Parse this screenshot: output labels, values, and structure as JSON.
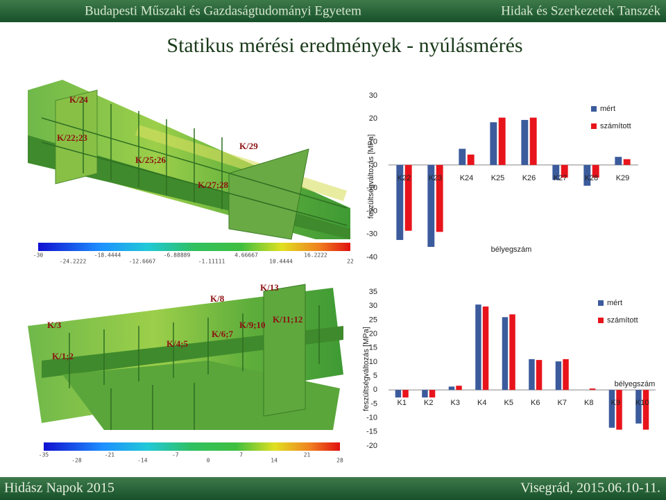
{
  "header": {
    "left": "Budapesti Műszaki és Gazdaságtudományi Egyetem",
    "right": "Hidak és Szerkezetek Tanszék"
  },
  "title": "Statikus mérési eredmények - nyúlásmérés",
  "footer": {
    "left": "Hidász Napok 2015",
    "right": "Visegrád, 2015.06.10-11."
  },
  "images": [
    {
      "labels": [
        "K/24",
        "K/22;23",
        "K/25;26",
        "K/29",
        "K/27;28"
      ],
      "colorbar": [
        -30,
        -24.2222,
        -18.4444,
        -12.6667,
        -6.88889,
        -1.11111,
        4.66667,
        10.4444,
        16.2222,
        22
      ]
    },
    {
      "labels": [
        "K/3",
        "K/1;2",
        "K/4;5",
        "K/8",
        "K/6;7",
        "K/9;10",
        "K/11;12",
        "K/13"
      ],
      "colorbar": [
        -35,
        -28,
        -21,
        -14,
        -7,
        0,
        7,
        14,
        21,
        28
      ]
    }
  ],
  "chart_data": [
    {
      "type": "bar",
      "y_label": "feszültségváltozás [MPa]",
      "x_label": "bélyegszám",
      "categories": [
        "K22",
        "K23",
        "K24",
        "K25",
        "K26",
        "K27",
        "K28",
        "K29"
      ],
      "series": [
        {
          "name": "mért",
          "color": "#3b5b9c",
          "values": [
            -32.5,
            -35.5,
            7,
            18.5,
            19.5,
            -6.5,
            -9,
            3.5
          ]
        },
        {
          "name": "számított",
          "color": "#e8141c",
          "values": [
            -28.5,
            -29,
            4.5,
            20.5,
            20.5,
            -5.5,
            -5.5,
            2.5
          ]
        }
      ],
      "ylim": [
        -40,
        30
      ],
      "yticks": [
        -40,
        -30,
        -20,
        -10,
        0,
        10,
        20,
        30
      ],
      "legend": "top-right"
    },
    {
      "type": "bar",
      "y_label": "feszültségváltozás [MPa]",
      "x_label": "bélyegszám",
      "categories": [
        "K1",
        "K2",
        "K3",
        "K4",
        "K5",
        "K6",
        "K7",
        "K8",
        "K9",
        "K10"
      ],
      "series": [
        {
          "name": "mért",
          "color": "#3b5b9c",
          "values": [
            -2.7,
            -2.7,
            1.2,
            30.5,
            26,
            11,
            10.2,
            0,
            -13.5,
            -12
          ]
        },
        {
          "name": "számított",
          "color": "#e8141c",
          "values": [
            -2.7,
            -2.7,
            1.5,
            29.8,
            27,
            10.7,
            11,
            0.5,
            -14.2,
            -14.2
          ]
        }
      ],
      "ylim": [
        -20,
        35
      ],
      "yticks": [
        -20,
        -15,
        -10,
        -5,
        0,
        5,
        10,
        15,
        20,
        25,
        30,
        35
      ],
      "legend": "top-right"
    }
  ]
}
